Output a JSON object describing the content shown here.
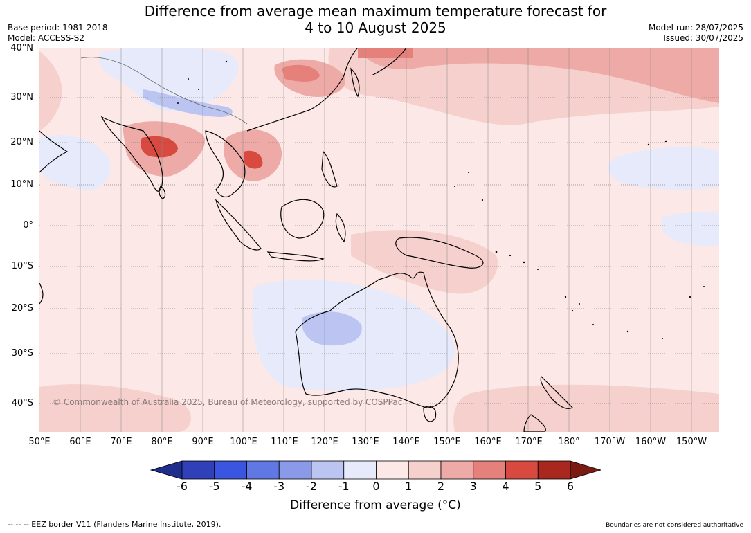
{
  "title_line1": "Difference from average mean maximum temperature forecast for",
  "title_line2": "4 to 10 August 2025",
  "base_period": "Base period: 1981-2018",
  "model": "Model: ACCESS-S2",
  "model_run": "Model run: 28/07/2025",
  "issued": "Issued: 30/07/2025",
  "copyright": "© Commonwealth of Australia 2025, Bureau of Meteorology, supported by COSPPac",
  "lat_labels": [
    "40°N",
    "30°N",
    "20°N",
    "10°N",
    "0°",
    "10°S",
    "20°S",
    "30°S",
    "40°S"
  ],
  "lon_labels": [
    "50°E",
    "60°E",
    "70°E",
    "80°E",
    "90°E",
    "100°E",
    "110°E",
    "120°E",
    "130°E",
    "140°E",
    "150°E",
    "160°E",
    "170°E",
    "180°",
    "170°W",
    "160°W",
    "150°W"
  ],
  "colorbar": {
    "ticks": [
      "-6",
      "-5",
      "-4",
      "-3",
      "-2",
      "-1",
      "0",
      "1",
      "2",
      "3",
      "4",
      "5",
      "6"
    ],
    "colors": [
      "#1f2e8a",
      "#2f40b8",
      "#3a55e0",
      "#6078e4",
      "#8a9ae8",
      "#bcc4f2",
      "#e6eafa",
      "#fce8e6",
      "#f5d0cd",
      "#edaaa6",
      "#e5807a",
      "#d84a40",
      "#a8281f",
      "#7a1a12"
    ],
    "label": "Difference from average ($^\\circ$C)",
    "label_text": "Difference from average (°C)"
  },
  "footer_left": "--  --  -- EEZ border V11 (Flanders Marine Institute, 2019).",
  "footer_right": "Boundaries are not considered authoritative"
}
